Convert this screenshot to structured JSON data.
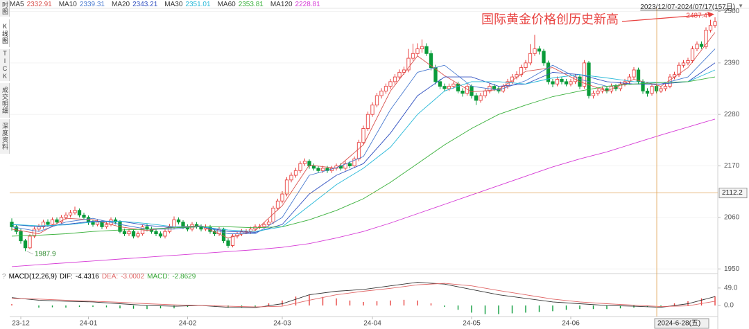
{
  "chart_data": {
    "type": "candlestick",
    "tabs": [
      "时图",
      "K线图",
      "TICK",
      "成交明细",
      "深度资料"
    ],
    "date_range": "2023/12/07-2024/07/17(157日)",
    "annotation": "国际黄金价格创历史新高",
    "high_label": 2487.4,
    "low_label": 1987.9,
    "up_color": "#e8413f",
    "down_color": "#0a9b3a",
    "ylim": [
      1940,
      2517
    ],
    "yticks": [
      2500,
      2390,
      2280,
      2170,
      2060,
      1950
    ],
    "grid": true,
    "xticks": [
      {
        "value": 2,
        "label": "23-12"
      },
      {
        "value": 17,
        "label": "24-01"
      },
      {
        "value": 39,
        "label": "24-02"
      },
      {
        "value": 60,
        "label": "24-03"
      },
      {
        "value": 80,
        "label": "24-04"
      },
      {
        "value": 102,
        "label": "24-05"
      },
      {
        "value": 124,
        "label": "24-06"
      }
    ],
    "crosshair": {
      "price": 2112.2,
      "date": "2024-6-28(五)"
    },
    "candles": [
      [
        2050,
        2058,
        2032,
        2040
      ],
      [
        2040,
        2045,
        2024,
        2030
      ],
      [
        2030,
        2035,
        2004,
        2010
      ],
      [
        2010,
        2014,
        1987.9,
        1995
      ],
      [
        1995,
        2024,
        1992,
        2020
      ],
      [
        2020,
        2040,
        2016,
        2035
      ],
      [
        2035,
        2046,
        2030,
        2040
      ],
      [
        2040,
        2055,
        2036,
        2050
      ],
      [
        2050,
        2056,
        2040,
        2045
      ],
      [
        2045,
        2060,
        2041,
        2055
      ],
      [
        2055,
        2060,
        2045,
        2050
      ],
      [
        2050,
        2065,
        2046,
        2060
      ],
      [
        2060,
        2071,
        2055,
        2065
      ],
      [
        2065,
        2076,
        2060,
        2070
      ],
      [
        2070,
        2083,
        2066,
        2075
      ],
      [
        2075,
        2079,
        2060,
        2065
      ],
      [
        2065,
        2070,
        2055,
        2060
      ],
      [
        2060,
        2064,
        2044,
        2050
      ],
      [
        2050,
        2055,
        2040,
        2045
      ],
      [
        2045,
        2056,
        2041,
        2050
      ],
      [
        2050,
        2054,
        2035,
        2040
      ],
      [
        2040,
        2050,
        2036,
        2045
      ],
      [
        2045,
        2060,
        2041,
        2055
      ],
      [
        2055,
        2060,
        2045,
        2050
      ],
      [
        2050,
        2054,
        2026,
        2030
      ],
      [
        2030,
        2036,
        2020,
        2025
      ],
      [
        2025,
        2035,
        2020,
        2030
      ],
      [
        2030,
        2034,
        2015,
        2020
      ],
      [
        2020,
        2030,
        2016,
        2025
      ],
      [
        2025,
        2045,
        2021,
        2040
      ],
      [
        2040,
        2046,
        2030,
        2035
      ],
      [
        2035,
        2040,
        2025,
        2030
      ],
      [
        2030,
        2034,
        2020,
        2025
      ],
      [
        2025,
        2030,
        2016,
        2020
      ],
      [
        2020,
        2035,
        2015,
        2030
      ],
      [
        2030,
        2046,
        2026,
        2040
      ],
      [
        2040,
        2062,
        2036,
        2055
      ],
      [
        2055,
        2060,
        2045,
        2050
      ],
      [
        2050,
        2054,
        2035,
        2040
      ],
      [
        2040,
        2045,
        2030,
        2035
      ],
      [
        2035,
        2050,
        2030,
        2045
      ],
      [
        2045,
        2050,
        2036,
        2040
      ],
      [
        2040,
        2045,
        2030,
        2035
      ],
      [
        2035,
        2045,
        2031,
        2040
      ],
      [
        2040,
        2044,
        2025,
        2030
      ],
      [
        2030,
        2035,
        2020,
        2025
      ],
      [
        2025,
        2040,
        2020,
        2035
      ],
      [
        2035,
        2038,
        2005,
        2010
      ],
      [
        2010,
        2015,
        1995,
        2000
      ],
      [
        2000,
        2025,
        1996,
        2020
      ],
      [
        2020,
        2030,
        2015,
        2025
      ],
      [
        2025,
        2035,
        2020,
        2030
      ],
      [
        2030,
        2035,
        2025,
        2030
      ],
      [
        2030,
        2040,
        2026,
        2035
      ],
      [
        2035,
        2045,
        2031,
        2040
      ],
      [
        2040,
        2046,
        2035,
        2040
      ],
      [
        2040,
        2050,
        2036,
        2045
      ],
      [
        2045,
        2056,
        2041,
        2050
      ],
      [
        2050,
        2085,
        2046,
        2080
      ],
      [
        2080,
        2100,
        2075,
        2095
      ],
      [
        2095,
        2116,
        2090,
        2110
      ],
      [
        2110,
        2146,
        2105,
        2140
      ],
      [
        2140,
        2156,
        2135,
        2150
      ],
      [
        2150,
        2166,
        2145,
        2160
      ],
      [
        2160,
        2180,
        2155,
        2175
      ],
      [
        2175,
        2186,
        2170,
        2180
      ],
      [
        2180,
        2184,
        2164,
        2170
      ],
      [
        2170,
        2175,
        2160,
        2165
      ],
      [
        2165,
        2170,
        2155,
        2160
      ],
      [
        2160,
        2170,
        2155,
        2165
      ],
      [
        2165,
        2170,
        2155,
        2160
      ],
      [
        2160,
        2170,
        2155,
        2165
      ],
      [
        2165,
        2175,
        2160,
        2170
      ],
      [
        2170,
        2176,
        2160,
        2165
      ],
      [
        2165,
        2180,
        2160,
        2175
      ],
      [
        2175,
        2180,
        2165,
        2170
      ],
      [
        2170,
        2190,
        2166,
        2185
      ],
      [
        2185,
        2226,
        2180,
        2220
      ],
      [
        2220,
        2256,
        2215,
        2250
      ],
      [
        2250,
        2286,
        2245,
        2280
      ],
      [
        2280,
        2306,
        2275,
        2300
      ],
      [
        2300,
        2326,
        2295,
        2320
      ],
      [
        2320,
        2336,
        2314,
        2330
      ],
      [
        2330,
        2346,
        2324,
        2340
      ],
      [
        2340,
        2356,
        2334,
        2350
      ],
      [
        2350,
        2366,
        2344,
        2360
      ],
      [
        2360,
        2376,
        2354,
        2370
      ],
      [
        2370,
        2382,
        2365,
        2375
      ],
      [
        2375,
        2420,
        2370,
        2400
      ],
      [
        2400,
        2431,
        2395,
        2410
      ],
      [
        2410,
        2432,
        2404,
        2420
      ],
      [
        2420,
        2440,
        2412,
        2425
      ],
      [
        2425,
        2432,
        2405,
        2410
      ],
      [
        2410,
        2417,
        2374,
        2380
      ],
      [
        2380,
        2386,
        2344,
        2350
      ],
      [
        2350,
        2356,
        2334,
        2340
      ],
      [
        2340,
        2346,
        2329,
        2335
      ],
      [
        2335,
        2346,
        2330,
        2340
      ],
      [
        2340,
        2350,
        2335,
        2345
      ],
      [
        2345,
        2350,
        2325,
        2330
      ],
      [
        2330,
        2336,
        2318,
        2325
      ],
      [
        2325,
        2346,
        2320,
        2340
      ],
      [
        2340,
        2344,
        2314,
        2320
      ],
      [
        2320,
        2326,
        2300,
        2310
      ],
      [
        2310,
        2326,
        2305,
        2320
      ],
      [
        2320,
        2335,
        2315,
        2330
      ],
      [
        2330,
        2346,
        2325,
        2340
      ],
      [
        2340,
        2345,
        2330,
        2335
      ],
      [
        2335,
        2340,
        2325,
        2330
      ],
      [
        2330,
        2345,
        2326,
        2340
      ],
      [
        2340,
        2356,
        2335,
        2350
      ],
      [
        2350,
        2366,
        2345,
        2360
      ],
      [
        2360,
        2372,
        2355,
        2365
      ],
      [
        2365,
        2386,
        2360,
        2380
      ],
      [
        2380,
        2396,
        2375,
        2390
      ],
      [
        2390,
        2430,
        2385,
        2410
      ],
      [
        2410,
        2450,
        2405,
        2420
      ],
      [
        2420,
        2426,
        2408,
        2415
      ],
      [
        2415,
        2420,
        2384,
        2390
      ],
      [
        2390,
        2395,
        2344,
        2350
      ],
      [
        2350,
        2356,
        2338,
        2345
      ],
      [
        2345,
        2361,
        2340,
        2355
      ],
      [
        2355,
        2360,
        2344,
        2350
      ],
      [
        2350,
        2356,
        2340,
        2345
      ],
      [
        2345,
        2356,
        2340,
        2350
      ],
      [
        2350,
        2366,
        2345,
        2360
      ],
      [
        2360,
        2365,
        2334,
        2340
      ],
      [
        2340,
        2396,
        2335,
        2390
      ],
      [
        2390,
        2394,
        2314,
        2320
      ],
      [
        2320,
        2331,
        2314,
        2325
      ],
      [
        2325,
        2336,
        2320,
        2330
      ],
      [
        2330,
        2340,
        2325,
        2335
      ],
      [
        2335,
        2340,
        2325,
        2330
      ],
      [
        2330,
        2346,
        2325,
        2340
      ],
      [
        2340,
        2345,
        2330,
        2335
      ],
      [
        2335,
        2350,
        2330,
        2345
      ],
      [
        2345,
        2356,
        2340,
        2350
      ],
      [
        2350,
        2366,
        2345,
        2360
      ],
      [
        2360,
        2381,
        2355,
        2375
      ],
      [
        2375,
        2380,
        2344,
        2350
      ],
      [
        2350,
        2355,
        2324,
        2330
      ],
      [
        2330,
        2336,
        2318,
        2325
      ],
      [
        2325,
        2345,
        2320,
        2340
      ],
      [
        2340,
        2346,
        2325,
        2330
      ],
      [
        2330,
        2340,
        2326,
        2335
      ],
      [
        2335,
        2345,
        2330,
        2340
      ],
      [
        2340,
        2366,
        2336,
        2360
      ],
      [
        2360,
        2371,
        2355,
        2365
      ],
      [
        2365,
        2391,
        2360,
        2385
      ],
      [
        2385,
        2396,
        2380,
        2390
      ],
      [
        2390,
        2401,
        2385,
        2395
      ],
      [
        2395,
        2426,
        2390,
        2420
      ],
      [
        2420,
        2436,
        2415,
        2430
      ],
      [
        2430,
        2436,
        2420,
        2425
      ],
      [
        2425,
        2466,
        2420,
        2460
      ],
      [
        2460,
        2482,
        2455,
        2470
      ],
      [
        2470,
        2487.4,
        2465,
        2478
      ]
    ],
    "ma_x": [
      0,
      6,
      12,
      18,
      24,
      30,
      36,
      42,
      48,
      54,
      60,
      66,
      72,
      78,
      84,
      90,
      96,
      102,
      108,
      114,
      120,
      126,
      132,
      138,
      144,
      150,
      156
    ],
    "ma_series": [
      {
        "name": "MA5",
        "color": "#d9534f",
        "legend_value": 2332.91,
        "values": [
          2035,
          2025,
          2058,
          2055,
          2040,
          2032,
          2040,
          2042,
          2016,
          2032,
          2085,
          2172,
          2165,
          2215,
          2330,
          2405,
          2363,
          2328,
          2333,
          2372,
          2380,
          2350,
          2330,
          2355,
          2340,
          2380,
          2455
        ]
      },
      {
        "name": "MA10",
        "color": "#4a7bd0",
        "legend_value": 2339.31,
        "values": [
          2040,
          2030,
          2050,
          2058,
          2045,
          2035,
          2035,
          2042,
          2025,
          2025,
          2060,
          2150,
          2166,
          2190,
          2290,
          2370,
          2385,
          2340,
          2332,
          2352,
          2385,
          2355,
          2340,
          2345,
          2345,
          2360,
          2420
        ]
      },
      {
        "name": "MA20",
        "color": "#3050c0",
        "legend_value": 2343.21,
        "values": [
          2045,
          2040,
          2045,
          2052,
          2052,
          2043,
          2038,
          2040,
          2030,
          2028,
          2045,
          2110,
          2150,
          2175,
          2240,
          2320,
          2360,
          2360,
          2340,
          2345,
          2370,
          2365,
          2350,
          2345,
          2345,
          2350,
          2390
        ]
      },
      {
        "name": "MA30",
        "color": "#27b8d8",
        "legend_value": 2351.01,
        "values": [
          2045,
          2042,
          2044,
          2050,
          2052,
          2047,
          2040,
          2040,
          2033,
          2030,
          2040,
          2085,
          2130,
          2165,
          2210,
          2280,
          2330,
          2350,
          2350,
          2345,
          2358,
          2365,
          2358,
          2350,
          2348,
          2350,
          2375
        ]
      },
      {
        "name": "MA60",
        "color": "#38b03a",
        "legend_value": 2353.81,
        "values": [
          2020,
          2022,
          2025,
          2030,
          2033,
          2035,
          2038,
          2040,
          2040,
          2038,
          2040,
          2055,
          2075,
          2100,
          2135,
          2175,
          2215,
          2250,
          2280,
          2300,
          2318,
          2330,
          2340,
          2345,
          2348,
          2350,
          2360
        ]
      },
      {
        "name": "MA120",
        "color": "#d63ad6",
        "legend_value": 2228.81,
        "values": [
          1955,
          1959,
          1963,
          1967,
          1971,
          1975,
          1979,
          1983,
          1987,
          1991,
          1996,
          2004,
          2016,
          2030,
          2048,
          2068,
          2088,
          2108,
          2128,
          2148,
          2168,
          2185,
          2200,
          2218,
          2236,
          2253,
          2270
        ]
      }
    ],
    "macd": {
      "help": "?",
      "title": "MACD(12,26,9)",
      "dif_name": "DIF:",
      "dif_value": -4.4316,
      "dea_name": "DEA:",
      "dea_value": -3.0002,
      "macd_name": "MACD:",
      "macd_value": -2.8629,
      "dif_color": "#333333",
      "dea_color": "#e06666",
      "ylim": [
        -27,
        70
      ],
      "yticks": [
        {
          "value": 49,
          "label": "49.0"
        },
        {
          "value": 0,
          "label": "0.0"
        }
      ],
      "x": [
        0,
        6,
        12,
        18,
        24,
        30,
        36,
        42,
        48,
        54,
        60,
        66,
        72,
        78,
        84,
        90,
        96,
        102,
        108,
        114,
        120,
        126,
        132,
        138,
        144,
        150,
        156
      ],
      "dif": [
        22,
        15,
        12,
        10,
        5,
        0,
        -2,
        0,
        -5,
        -6,
        5,
        30,
        40,
        45,
        55,
        65,
        60,
        45,
        30,
        20,
        10,
        5,
        0,
        -2,
        -5,
        5,
        25
      ],
      "dea": [
        20,
        18,
        15,
        12,
        9,
        5,
        2,
        0,
        -2,
        -4,
        -2,
        15,
        30,
        40,
        48,
        58,
        62,
        55,
        42,
        30,
        18,
        10,
        5,
        1,
        -3,
        -1,
        12
      ],
      "hist_x": [
        0,
        3,
        6,
        9,
        12,
        15,
        18,
        21,
        24,
        27,
        30,
        33,
        36,
        39,
        42,
        45,
        48,
        51,
        54,
        57,
        60,
        63,
        66,
        69,
        72,
        75,
        78,
        81,
        84,
        87,
        90,
        93,
        96,
        99,
        102,
        105,
        108,
        111,
        114,
        117,
        120,
        123,
        126,
        129,
        132,
        135,
        138,
        141,
        144,
        147,
        150,
        153,
        156
      ],
      "hist": [
        4,
        0,
        -6,
        -5,
        -6,
        -4,
        -4,
        -5,
        -8,
        -9,
        -10,
        -8,
        -8,
        -4,
        0,
        -3,
        -6,
        -5,
        -4,
        6,
        14,
        25,
        30,
        24,
        20,
        14,
        10,
        12,
        14,
        16,
        14,
        6,
        -4,
        -12,
        -20,
        -24,
        -24,
        -22,
        -20,
        -18,
        -16,
        -12,
        -10,
        -10,
        -10,
        -8,
        -6,
        -4,
        -4,
        6,
        12,
        20,
        26
      ]
    }
  }
}
